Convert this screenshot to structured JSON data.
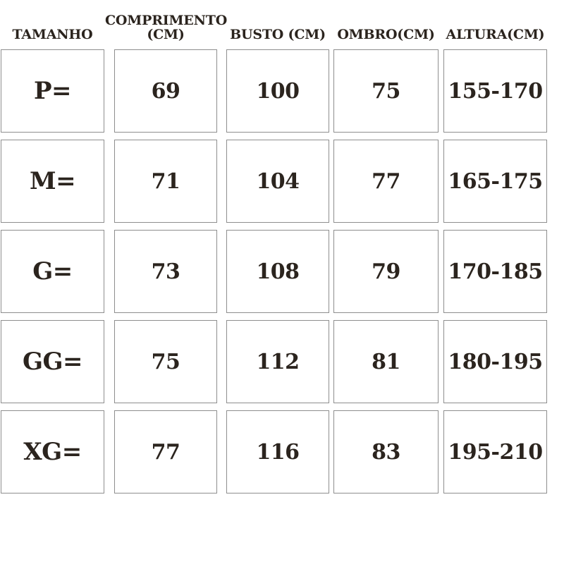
{
  "colors": {
    "background": "#ffffff",
    "text": "#2b241e",
    "cell_border": "#8e8e8e"
  },
  "chart_data": {
    "type": "table",
    "title": "",
    "columns": [
      "TAMANHO",
      "COMPRIMENTO (CM)",
      "BUSTO (CM)",
      "OMBRO(CM)",
      "ALTURA(CM)"
    ],
    "rows": [
      [
        "P=",
        "69",
        "100",
        "75",
        "155-170"
      ],
      [
        "M=",
        "71",
        "104",
        "77",
        "165-175"
      ],
      [
        "G=",
        "73",
        "108",
        "79",
        "170-185"
      ],
      [
        "GG=",
        "75",
        "112",
        "81",
        "180-195"
      ],
      [
        "XG=",
        "77",
        "116",
        "83",
        "195-210"
      ]
    ],
    "layout_hints": {
      "grid": "separate bordered boxes per cell",
      "header_position": "top, no border",
      "row_count": 5,
      "column_count": 5
    }
  }
}
